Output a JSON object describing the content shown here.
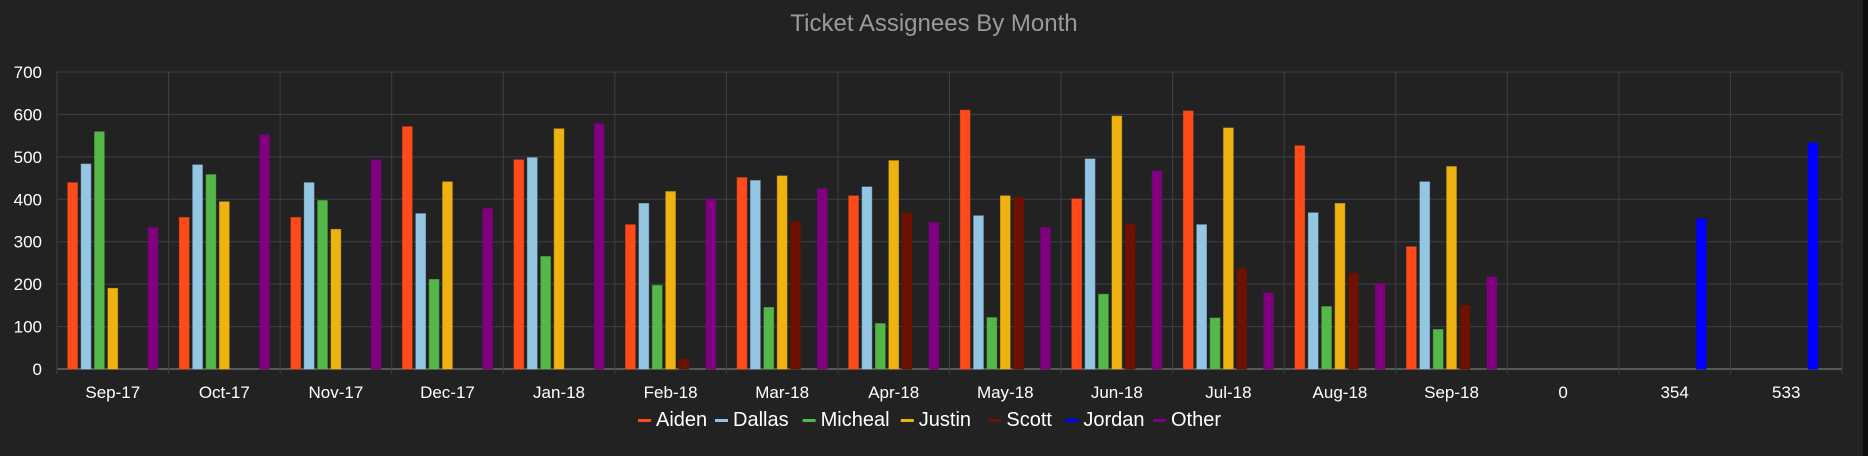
{
  "chart_data": {
    "type": "bar",
    "title": "Ticket Assignees By Month",
    "xlabel": "",
    "ylabel": "",
    "ylim": [
      0,
      700
    ],
    "yticks": [
      0,
      100,
      200,
      300,
      400,
      500,
      600,
      700
    ],
    "grid": true,
    "legend_position": "bottom",
    "categories": [
      "Sep-17",
      "Oct-17",
      "Nov-17",
      "Dec-17",
      "Jan-18",
      "Feb-18",
      "Mar-18",
      "Apr-18",
      "May-18",
      "Jun-18",
      "Jul-18",
      "Aug-18",
      "Sep-18",
      "0",
      "354",
      "533"
    ],
    "series": [
      {
        "name": "Aiden",
        "color": "#ff4a1a",
        "values": [
          439,
          357,
          357,
          571,
          493,
          340,
          451,
          408,
          610,
          401,
          608,
          526,
          288,
          null,
          null,
          null
        ]
      },
      {
        "name": "Dallas",
        "color": "#93c6e3",
        "values": [
          483,
          481,
          439,
          366,
          498,
          390,
          444,
          429,
          361,
          495,
          340,
          368,
          441,
          null,
          null,
          null
        ]
      },
      {
        "name": "Micheal",
        "color": "#54b848",
        "values": [
          559,
          458,
          397,
          211,
          265,
          197,
          145,
          107,
          121,
          176,
          120,
          147,
          93,
          null,
          null,
          null
        ]
      },
      {
        "name": "Justin",
        "color": "#eeb211",
        "values": [
          190,
          394,
          329,
          441,
          566,
          418,
          455,
          491,
          408,
          596,
          568,
          390,
          477,
          null,
          null,
          null
        ]
      },
      {
        "name": "Scott",
        "color": "#6e1100",
        "values": [
          null,
          null,
          null,
          null,
          null,
          23,
          347,
          368,
          405,
          342,
          236,
          225,
          150,
          null,
          null,
          null
        ]
      },
      {
        "name": "Jordan",
        "color": "#0000ff",
        "values": [
          null,
          null,
          null,
          null,
          null,
          null,
          null,
          null,
          null,
          null,
          null,
          null,
          null,
          null,
          354,
          533
        ]
      },
      {
        "name": "Other",
        "color": "#800080",
        "values": [
          333,
          552,
          493,
          378,
          578,
          401,
          425,
          345,
          333,
          467,
          179,
          201,
          217,
          null,
          null,
          null
        ]
      }
    ]
  }
}
